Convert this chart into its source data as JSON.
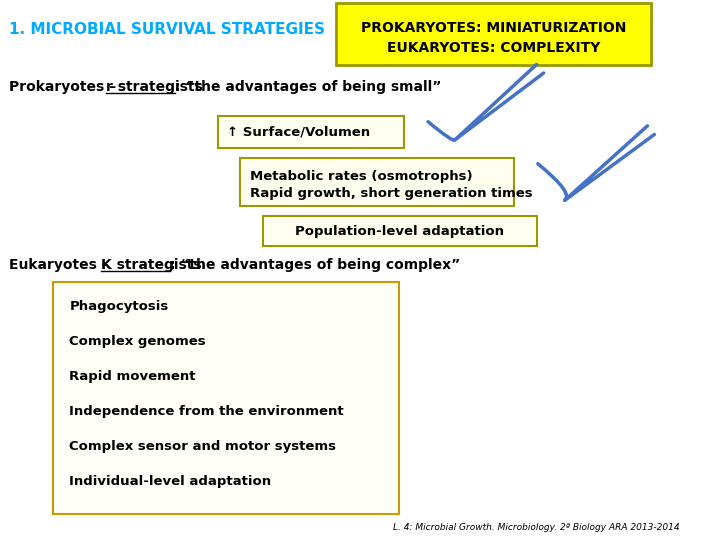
{
  "title": "1. MICROBIAL SURVIVAL STRATEGIES",
  "title_color": "#00AAFF",
  "bg_color": "#FFFFFF",
  "box_top_text1": "PROKARYOTES: MINIATURIZATION",
  "box_top_text2": "EUKARYOTES: COMPLEXITY",
  "box_top_bg": "#FFFF00",
  "box_top_border": "#999900",
  "surface_text": "↑ Surface/Volumen",
  "metabolic_text1": "Metabolic rates (osmotrophs)",
  "metabolic_text2": "Rapid growth, short generation times",
  "population_text": "Population-level adaptation",
  "euk_list": [
    "Phagocytosis",
    "Complex genomes",
    "Rapid movement",
    "Independence from the environment",
    "Complex sensor and motor systems",
    "Individual-level adaptation"
  ],
  "footer": "L. 4: Microbial Growth. Microbiology. 2ª Biology ARA 2013-2014",
  "arrow_color": "#4472C4"
}
